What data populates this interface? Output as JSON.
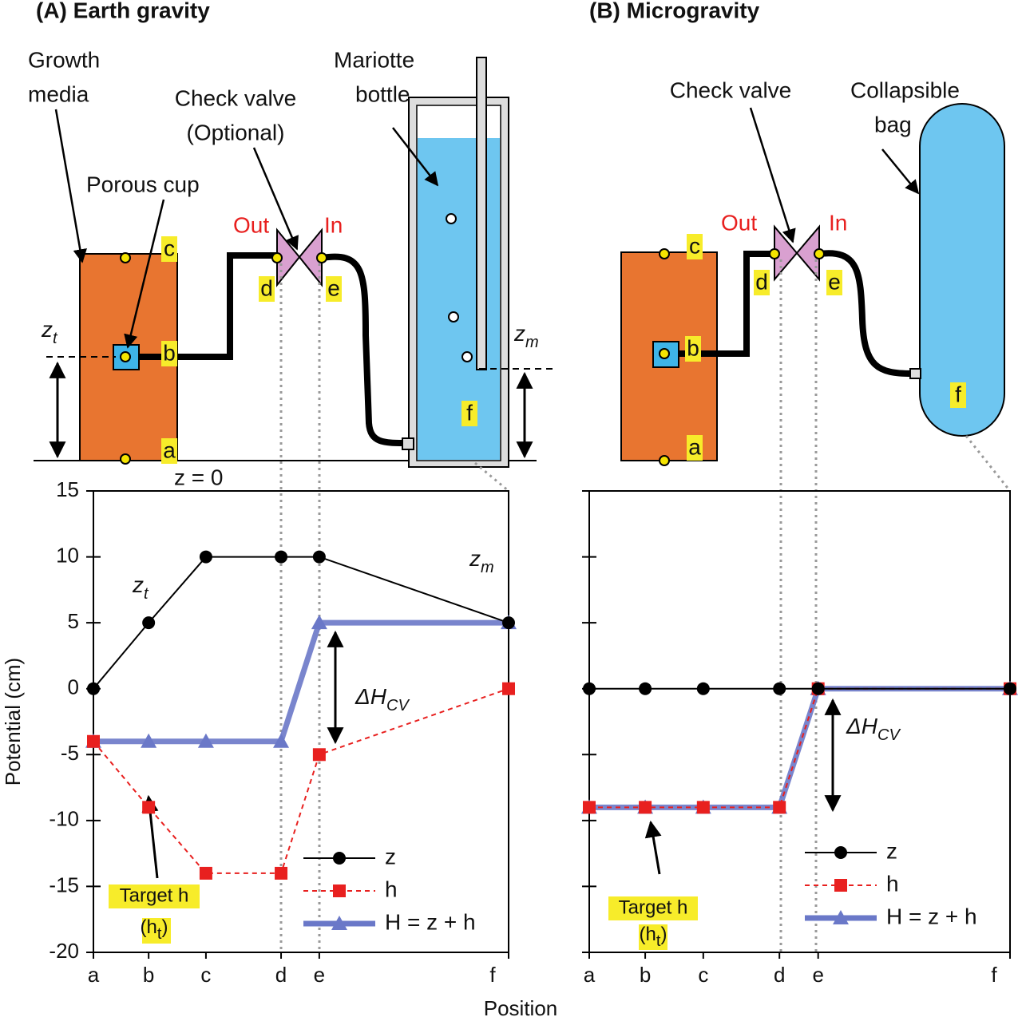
{
  "chart_data": [
    {
      "type": "line",
      "categories": [
        "a",
        "b",
        "c",
        "d",
        "e",
        "f"
      ],
      "ylabel": "Potential (cm)",
      "xlabel": "Position",
      "ylim": [
        -20,
        15
      ],
      "yticks": [
        -20,
        -15,
        -10,
        -5,
        0,
        5,
        10,
        15
      ],
      "tick_labels": true,
      "legend": "lower right",
      "series": [
        {
          "name": "z",
          "color": "#000000",
          "marker": "circle",
          "dashed": false,
          "width": 2,
          "values": [
            0,
            5,
            10,
            10,
            10,
            5
          ]
        },
        {
          "name": "h",
          "color": "#e8201f",
          "marker": "square",
          "dashed": true,
          "width": 2,
          "values": [
            -4,
            -9,
            -14,
            -14,
            -5,
            0
          ]
        },
        {
          "name": "H = z + h",
          "color": "#6a78c8",
          "marker": "triangle",
          "dashed": false,
          "width": 7,
          "values": [
            -4,
            -4,
            -4,
            -4,
            5,
            5
          ]
        }
      ],
      "annotations": [
        {
          "text": "z",
          "sub": "t"
        },
        {
          "text": "z",
          "sub": "m"
        },
        {
          "text": "ΔH",
          "sub": "CV"
        },
        {
          "text": "Target h",
          "open": "(h",
          "sub": "t",
          "close": ")"
        }
      ]
    },
    {
      "type": "line",
      "categories": [
        "a",
        "b",
        "c",
        "d",
        "e",
        "f"
      ],
      "ylim": [
        -20,
        15
      ],
      "yticks": [
        -20,
        -15,
        -10,
        -5,
        0,
        5,
        10,
        15
      ],
      "tick_labels": false,
      "legend": "lower right",
      "series": [
        {
          "name": "z",
          "color": "#000000",
          "marker": "circle",
          "dashed": false,
          "width": 2,
          "values": [
            0,
            0,
            0,
            0,
            0,
            0
          ]
        },
        {
          "name": "h",
          "color": "#e8201f",
          "marker": "square",
          "dashed": true,
          "width": 2,
          "values": [
            -9,
            -9,
            -9,
            -9,
            0,
            0
          ]
        },
        {
          "name": "H = z + h",
          "color": "#6a78c8",
          "marker": "triangle",
          "dashed": false,
          "width": 7,
          "values": [
            -9,
            -9,
            -9,
            -9,
            0,
            0
          ]
        }
      ],
      "annotations": [
        {
          "text": "ΔH",
          "sub": "CV"
        },
        {
          "text": "Target h",
          "open": "(h",
          "sub": "t",
          "close": ")"
        }
      ]
    }
  ],
  "diagrams": [
    {
      "title": "(A) Earth gravity",
      "growth_media": [
        "Growth",
        "media"
      ],
      "porous_cup": "Porous cup",
      "check_valve": [
        "Check valve",
        "(Optional)"
      ],
      "mariotte": [
        "Mariotte",
        "bottle"
      ],
      "out": "Out",
      "in": "In",
      "ground": "z = 0",
      "z_t": {
        "text": "z",
        "sub": "t"
      },
      "z_m": {
        "text": "z",
        "sub": "m"
      },
      "points": [
        "a",
        "b",
        "c",
        "d",
        "e",
        "f"
      ]
    },
    {
      "title": "(B) Microgravity",
      "check_valve": [
        "Check valve"
      ],
      "collapsible_bag": [
        "Collapsible",
        "bag"
      ],
      "out": "Out",
      "in": "In",
      "points": [
        "a",
        "b",
        "c",
        "d",
        "e",
        "f"
      ]
    }
  ]
}
